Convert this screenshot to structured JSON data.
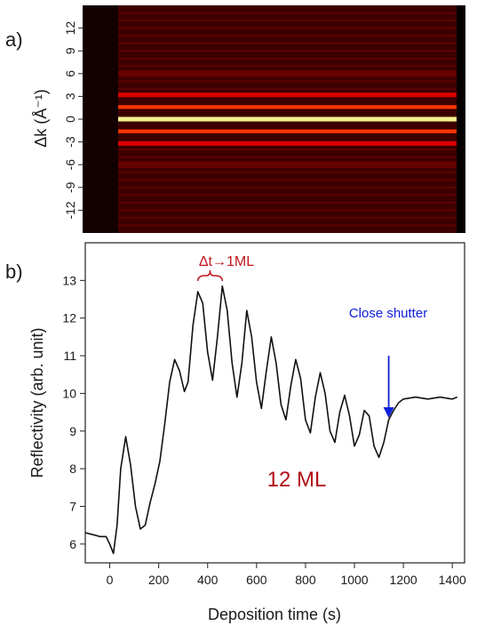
{
  "chart_data": [
    {
      "panel": "a)",
      "type": "heatmap",
      "ylabel": "Δk (Å⁻¹)",
      "ylim": [
        -15,
        15
      ],
      "yticks": [
        12,
        9,
        6,
        3,
        0,
        -3,
        -6,
        -9,
        -12
      ],
      "colormap": "hot",
      "rows": [
        {
          "dk": 0,
          "level": 1.0,
          "width": 0.6
        },
        {
          "dk": 1.6,
          "level": 0.55,
          "width": 0.5
        },
        {
          "dk": -1.6,
          "level": 0.55,
          "width": 0.5
        },
        {
          "dk": 3.2,
          "level": 0.4,
          "width": 0.6
        },
        {
          "dk": -3.2,
          "level": 0.4,
          "width": 0.6
        },
        {
          "dk": 6,
          "level": 0.18,
          "width": 0.9
        },
        {
          "dk": -6,
          "level": 0.18,
          "width": 0.9
        }
      ]
    },
    {
      "panel": "b)",
      "type": "line",
      "xlabel": "Deposition time (s)",
      "ylabel": "Reflectivity (arb. unit)",
      "xlim": [
        -100,
        1450
      ],
      "ylim": [
        5.5,
        14
      ],
      "xticks": [
        0,
        200,
        400,
        600,
        800,
        1000,
        1200,
        1400
      ],
      "yticks": [
        6,
        7,
        8,
        9,
        10,
        11,
        12,
        13
      ],
      "series": [
        {
          "color": "#111111",
          "x": [
            -100,
            -70,
            -40,
            -15,
            0,
            15,
            30,
            45,
            65,
            85,
            105,
            125,
            145,
            165,
            185,
            205,
            225,
            245,
            265,
            285,
            305,
            320,
            340,
            360,
            380,
            400,
            420,
            440,
            460,
            480,
            500,
            520,
            540,
            560,
            580,
            600,
            620,
            640,
            660,
            680,
            700,
            720,
            740,
            760,
            780,
            800,
            820,
            840,
            860,
            880,
            900,
            920,
            940,
            960,
            980,
            1000,
            1020,
            1040,
            1060,
            1080,
            1100,
            1120,
            1140,
            1160,
            1180,
            1200,
            1250,
            1300,
            1350,
            1400,
            1420
          ],
          "y": [
            6.3,
            6.25,
            6.2,
            6.2,
            6.0,
            5.75,
            6.5,
            8.0,
            8.85,
            8.1,
            7.0,
            6.4,
            6.5,
            7.1,
            7.6,
            8.2,
            9.2,
            10.3,
            10.9,
            10.6,
            10.05,
            10.3,
            11.8,
            12.7,
            12.4,
            11.1,
            10.35,
            11.5,
            12.85,
            12.2,
            10.8,
            9.9,
            10.8,
            12.2,
            11.5,
            10.3,
            9.6,
            10.6,
            11.5,
            10.8,
            9.7,
            9.3,
            10.2,
            10.9,
            10.4,
            9.3,
            8.95,
            9.9,
            10.55,
            10.0,
            9.0,
            8.7,
            9.5,
            9.95,
            9.4,
            8.6,
            8.9,
            9.55,
            9.4,
            8.6,
            8.3,
            8.7,
            9.3,
            9.55,
            9.75,
            9.85,
            9.9,
            9.85,
            9.9,
            9.85,
            9.9
          ]
        }
      ],
      "annotations": {
        "delta_label": "Δt→1ML",
        "delta_color": "#c0161c",
        "delta_bracket": [
          360,
          460
        ],
        "shutter_label": "Close shutter",
        "shutter_color": "#1020d8",
        "shutter_x": 1140,
        "shutter_arrow_from": 11.0,
        "shutter_arrow_to": 9.35,
        "ml_label": "12 ML",
        "ml_color": "#b01018"
      }
    }
  ]
}
